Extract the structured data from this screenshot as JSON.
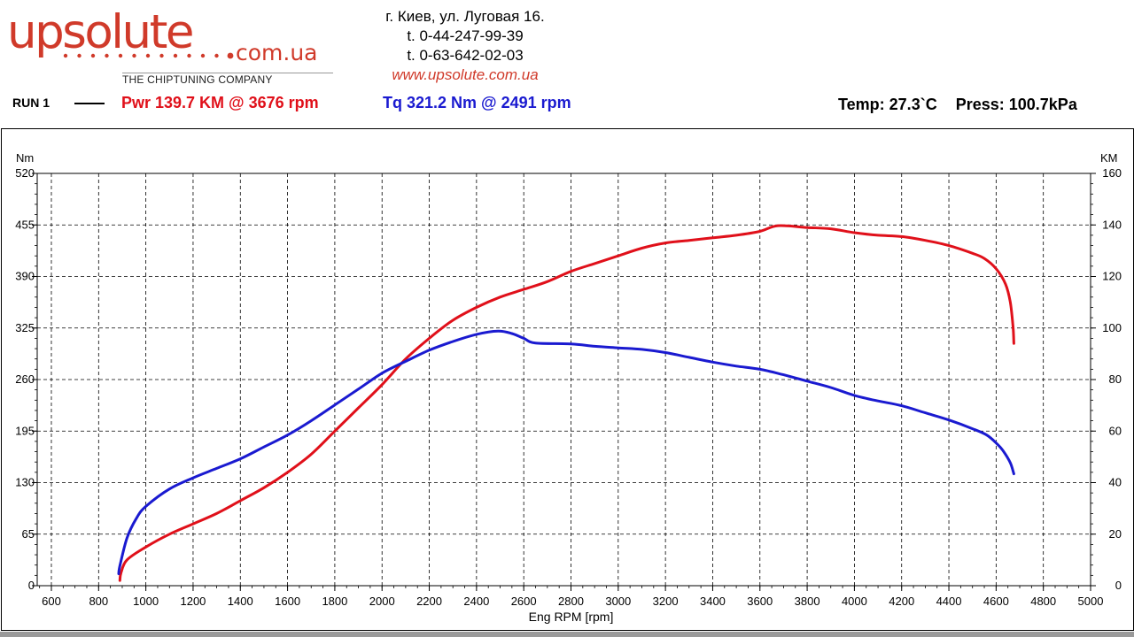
{
  "logo": {
    "main_text": "upsolute",
    "domain_text": "com.ua",
    "tagline": "THE CHIPTUNING COMPANY",
    "dot_color": "#d03a2a"
  },
  "contact": {
    "address": "г. Киев, ул. Луговая 16.",
    "phone1": "t. 0-44-247-99-39",
    "phone2": "t. 0-63-642-02-03",
    "website": "www.upsolute.com.ua"
  },
  "header": {
    "run_label": "RUN 1",
    "pwr_label": "Pwr  139.7 KM @ 3676 rpm",
    "tq_label": "Tq 321.2 Nm @ 2491 rpm",
    "temp_label": "Temp: 27.3`C",
    "press_label": "Press: 100.7kPa"
  },
  "colors": {
    "power": "#e0101a",
    "torque": "#1a1ad0",
    "grid": "#000000"
  },
  "chart_data": {
    "type": "line",
    "xlabel": "Eng RPM [rpm]",
    "ylabel_left": "Nm",
    "ylabel_right": "KM",
    "xlim": [
      540,
      5000
    ],
    "ylim_left": [
      0,
      520
    ],
    "ylim_right": [
      0,
      160
    ],
    "x_ticks": [
      600,
      800,
      1000,
      1200,
      1400,
      1600,
      1800,
      2000,
      2200,
      2400,
      2600,
      2800,
      3000,
      3200,
      3400,
      3600,
      3800,
      4000,
      4200,
      4400,
      4600,
      4800,
      5000
    ],
    "y_ticks_left": [
      0,
      65,
      130,
      195,
      260,
      325,
      390,
      455,
      520
    ],
    "y_ticks_right": [
      0,
      20,
      40,
      60,
      80,
      100,
      120,
      140,
      160
    ],
    "grid": true,
    "series": [
      {
        "name": "Pwr",
        "axis": "right",
        "color": "#e0101a",
        "points": [
          [
            890,
            2
          ],
          [
            895,
            5
          ],
          [
            920,
            10
          ],
          [
            1000,
            15
          ],
          [
            1100,
            20
          ],
          [
            1200,
            24
          ],
          [
            1300,
            28
          ],
          [
            1400,
            33
          ],
          [
            1500,
            38
          ],
          [
            1600,
            44
          ],
          [
            1700,
            51
          ],
          [
            1800,
            60
          ],
          [
            1900,
            69
          ],
          [
            2000,
            78
          ],
          [
            2100,
            88
          ],
          [
            2200,
            96
          ],
          [
            2300,
            103
          ],
          [
            2400,
            108
          ],
          [
            2500,
            112
          ],
          [
            2600,
            115
          ],
          [
            2700,
            118
          ],
          [
            2800,
            122
          ],
          [
            2900,
            125
          ],
          [
            3000,
            128
          ],
          [
            3100,
            131
          ],
          [
            3200,
            133
          ],
          [
            3300,
            134
          ],
          [
            3400,
            135
          ],
          [
            3500,
            136
          ],
          [
            3600,
            137.5
          ],
          [
            3676,
            139.7
          ],
          [
            3800,
            139
          ],
          [
            3900,
            138.5
          ],
          [
            4000,
            137
          ],
          [
            4100,
            136
          ],
          [
            4200,
            135.5
          ],
          [
            4300,
            134
          ],
          [
            4400,
            132
          ],
          [
            4500,
            129
          ],
          [
            4550,
            127
          ],
          [
            4600,
            123
          ],
          [
            4640,
            117
          ],
          [
            4660,
            110
          ],
          [
            4672,
            100
          ],
          [
            4675,
            94
          ]
        ]
      },
      {
        "name": "Tq",
        "axis": "left",
        "color": "#1a1ad0",
        "points": [
          [
            885,
            15
          ],
          [
            890,
            25
          ],
          [
            920,
            60
          ],
          [
            960,
            85
          ],
          [
            1000,
            100
          ],
          [
            1100,
            122
          ],
          [
            1200,
            136
          ],
          [
            1300,
            148
          ],
          [
            1400,
            160
          ],
          [
            1500,
            175
          ],
          [
            1600,
            190
          ],
          [
            1700,
            208
          ],
          [
            1800,
            228
          ],
          [
            1900,
            248
          ],
          [
            2000,
            268
          ],
          [
            2100,
            283
          ],
          [
            2200,
            297
          ],
          [
            2300,
            308
          ],
          [
            2400,
            317
          ],
          [
            2491,
            321.2
          ],
          [
            2550,
            318
          ],
          [
            2600,
            312
          ],
          [
            2650,
            306
          ],
          [
            2800,
            305
          ],
          [
            2900,
            302
          ],
          [
            3000,
            300
          ],
          [
            3100,
            298
          ],
          [
            3200,
            294
          ],
          [
            3300,
            288
          ],
          [
            3400,
            282
          ],
          [
            3500,
            277
          ],
          [
            3600,
            273
          ],
          [
            3700,
            266
          ],
          [
            3800,
            258
          ],
          [
            3900,
            250
          ],
          [
            4000,
            240
          ],
          [
            4100,
            233
          ],
          [
            4200,
            227
          ],
          [
            4300,
            218
          ],
          [
            4400,
            209
          ],
          [
            4500,
            198
          ],
          [
            4560,
            190
          ],
          [
            4600,
            180
          ],
          [
            4630,
            170
          ],
          [
            4660,
            155
          ],
          [
            4675,
            141
          ]
        ]
      }
    ]
  }
}
